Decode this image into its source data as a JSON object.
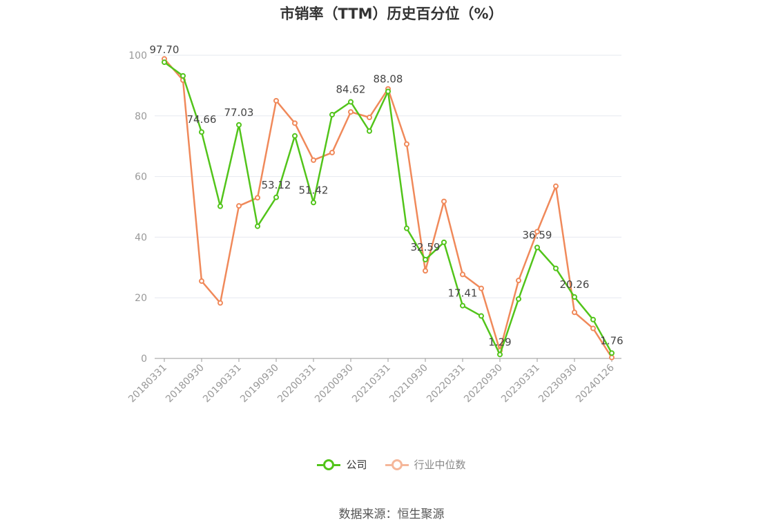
{
  "chart_data": {
    "type": "line",
    "title": "市销率（TTM）历史百分位（%）",
    "ylim": [
      0,
      100
    ],
    "yticks": [
      0,
      20,
      40,
      60,
      80,
      100
    ],
    "grid": true,
    "legend_position": "bottom",
    "x": [
      "20180331",
      "20180630",
      "20180930",
      "20181231",
      "20190331",
      "20190630",
      "20190930",
      "20191231",
      "20200331",
      "20200630",
      "20200930",
      "20201231",
      "20210331",
      "20210630",
      "20210930",
      "20211231",
      "20220331",
      "20220630",
      "20220930",
      "20221231",
      "20230331",
      "20230630",
      "20230930",
      "20231231",
      "20240126"
    ],
    "xtick_labels": [
      "20180331",
      "20180930",
      "20190331",
      "20190930",
      "20200331",
      "20200930",
      "20210331",
      "20210930",
      "20220331",
      "20220930",
      "20230331",
      "20230930",
      "20240126"
    ],
    "series": [
      {
        "name": "公司",
        "color": "#52c41a",
        "values": [
          97.7,
          93.2,
          74.66,
          50.2,
          77.03,
          43.6,
          53.12,
          73.4,
          51.42,
          80.4,
          84.62,
          75.0,
          88.08,
          42.9,
          32.59,
          38.3,
          17.41,
          14.0,
          1.29,
          19.6,
          36.59,
          29.7,
          20.26,
          12.8,
          1.76
        ],
        "labeled": [
          {
            "index": 0,
            "label": "97.70"
          },
          {
            "index": 2,
            "label": "74.66"
          },
          {
            "index": 4,
            "label": "77.03"
          },
          {
            "index": 6,
            "label": "53.12"
          },
          {
            "index": 8,
            "label": "51.42"
          },
          {
            "index": 10,
            "label": "84.62"
          },
          {
            "index": 12,
            "label": "88.08"
          },
          {
            "index": 14,
            "label": "32.59"
          },
          {
            "index": 16,
            "label": "17.41"
          },
          {
            "index": 18,
            "label": "1.29"
          },
          {
            "index": 20,
            "label": "36.59"
          },
          {
            "index": 22,
            "label": "20.26"
          },
          {
            "index": 24,
            "label": "1.76"
          }
        ]
      },
      {
        "name": "行业中位数",
        "color": "#f0895a",
        "values": [
          98.8,
          91.8,
          25.5,
          18.3,
          50.3,
          53.0,
          85.0,
          77.6,
          65.4,
          67.9,
          81.3,
          79.5,
          88.9,
          70.7,
          28.9,
          51.8,
          27.7,
          23.1,
          2.6,
          25.7,
          41.8,
          56.8,
          15.2,
          9.9,
          0.3
        ]
      }
    ]
  },
  "legend": {
    "items": [
      {
        "label": "公司",
        "color": "#52c41a"
      },
      {
        "label": "行业中位数",
        "color": "#f5b79a"
      }
    ]
  },
  "source": "数据来源：恒生聚源"
}
